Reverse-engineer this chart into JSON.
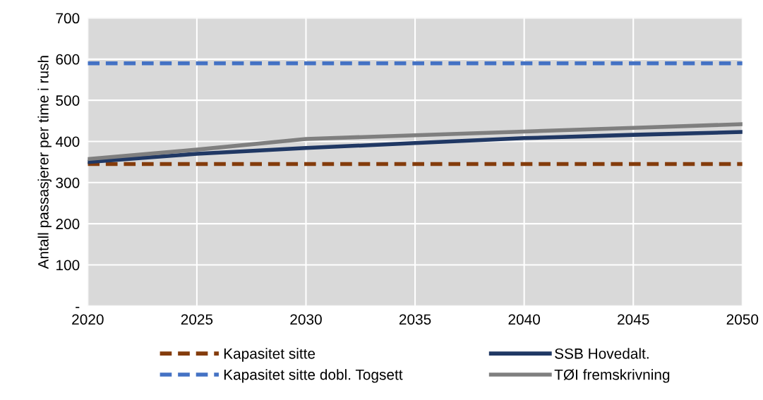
{
  "chart_data": {
    "type": "line",
    "ylabel": "Antall passasjerer per time i rush",
    "x": [
      2020,
      2025,
      2030,
      2035,
      2040,
      2045,
      2050
    ],
    "series": [
      {
        "name": "Kapasitet sitte",
        "color": "#843c0c",
        "line_style": "dashed",
        "values": [
          345,
          345,
          345,
          345,
          345,
          345,
          345
        ]
      },
      {
        "name": "Kapasitet sitte dobl. Togsett",
        "color": "#4472c4",
        "line_style": "dashed",
        "values": [
          590,
          590,
          590,
          590,
          590,
          590,
          590
        ]
      },
      {
        "name": "SSB Hovedalt.",
        "color": "#203864",
        "line_style": "solid",
        "values": [
          350,
          370,
          384,
          396,
          408,
          416,
          423
        ]
      },
      {
        "name": "TØI fremskrivning",
        "color": "#7f7f7f",
        "line_style": "solid",
        "values": [
          357,
          380,
          406,
          415,
          424,
          433,
          442
        ]
      }
    ],
    "xlim": [
      2020,
      2050
    ],
    "xticks": [
      2020,
      2025,
      2030,
      2035,
      2040,
      2045,
      2050
    ],
    "ylim": [
      0,
      700
    ],
    "yticks": [
      {
        "value": 0,
        "label": "-"
      },
      100,
      200,
      300,
      400,
      500,
      600,
      700
    ],
    "grid": true,
    "legend": "bottom",
    "marker": "none"
  }
}
